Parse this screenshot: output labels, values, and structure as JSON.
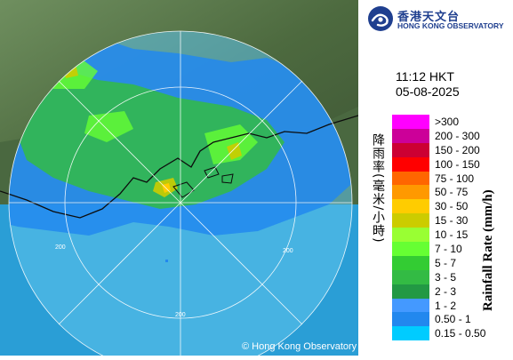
{
  "header": {
    "observatory_name_cn": "香港天文台",
    "observatory_name_en": "HONG KONG OBSERVATORY"
  },
  "timestamp": {
    "time": "11:12 HKT",
    "date": "05-08-2025"
  },
  "legend": {
    "title_en": "Rainfall Rate (mm/h)",
    "title_cn": "降雨率(毫米/小時)",
    "classes": [
      {
        "label": ">300",
        "color": "#ff00ff"
      },
      {
        "label": "200 - 300",
        "color": "#cc0099"
      },
      {
        "label": "150 - 200",
        "color": "#cc0033"
      },
      {
        "label": "100 - 150",
        "color": "#ff0000"
      },
      {
        "label": "75 - 100",
        "color": "#ff6600"
      },
      {
        "label": "50 - 75",
        "color": "#ff9900"
      },
      {
        "label": "30 - 50",
        "color": "#ffcc00"
      },
      {
        "label": "15 - 30",
        "color": "#cccc00"
      },
      {
        "label": "10 - 15",
        "color": "#99ff33"
      },
      {
        "label": "7 - 10",
        "color": "#66ff33"
      },
      {
        "label": "5 - 7",
        "color": "#33cc33"
      },
      {
        "label": "3 - 5",
        "color": "#33bb44"
      },
      {
        "label": "2 - 3",
        "color": "#229944"
      },
      {
        "label": "1 - 2",
        "color": "#4499ff"
      },
      {
        "label": "0.50 - 1",
        "color": "#2288ee"
      },
      {
        "label": "0.15 - 0.50",
        "color": "#00ccff"
      }
    ]
  },
  "map": {
    "range_ring_labels": [
      "200",
      "200",
      "200"
    ],
    "copyright": "© Hong Kong Observatory",
    "colors": {
      "ocean": "#2a9ed6",
      "range_disk": "#5ec5ec",
      "land": "#4f6a43",
      "coastline": "#0c0c0c"
    }
  }
}
